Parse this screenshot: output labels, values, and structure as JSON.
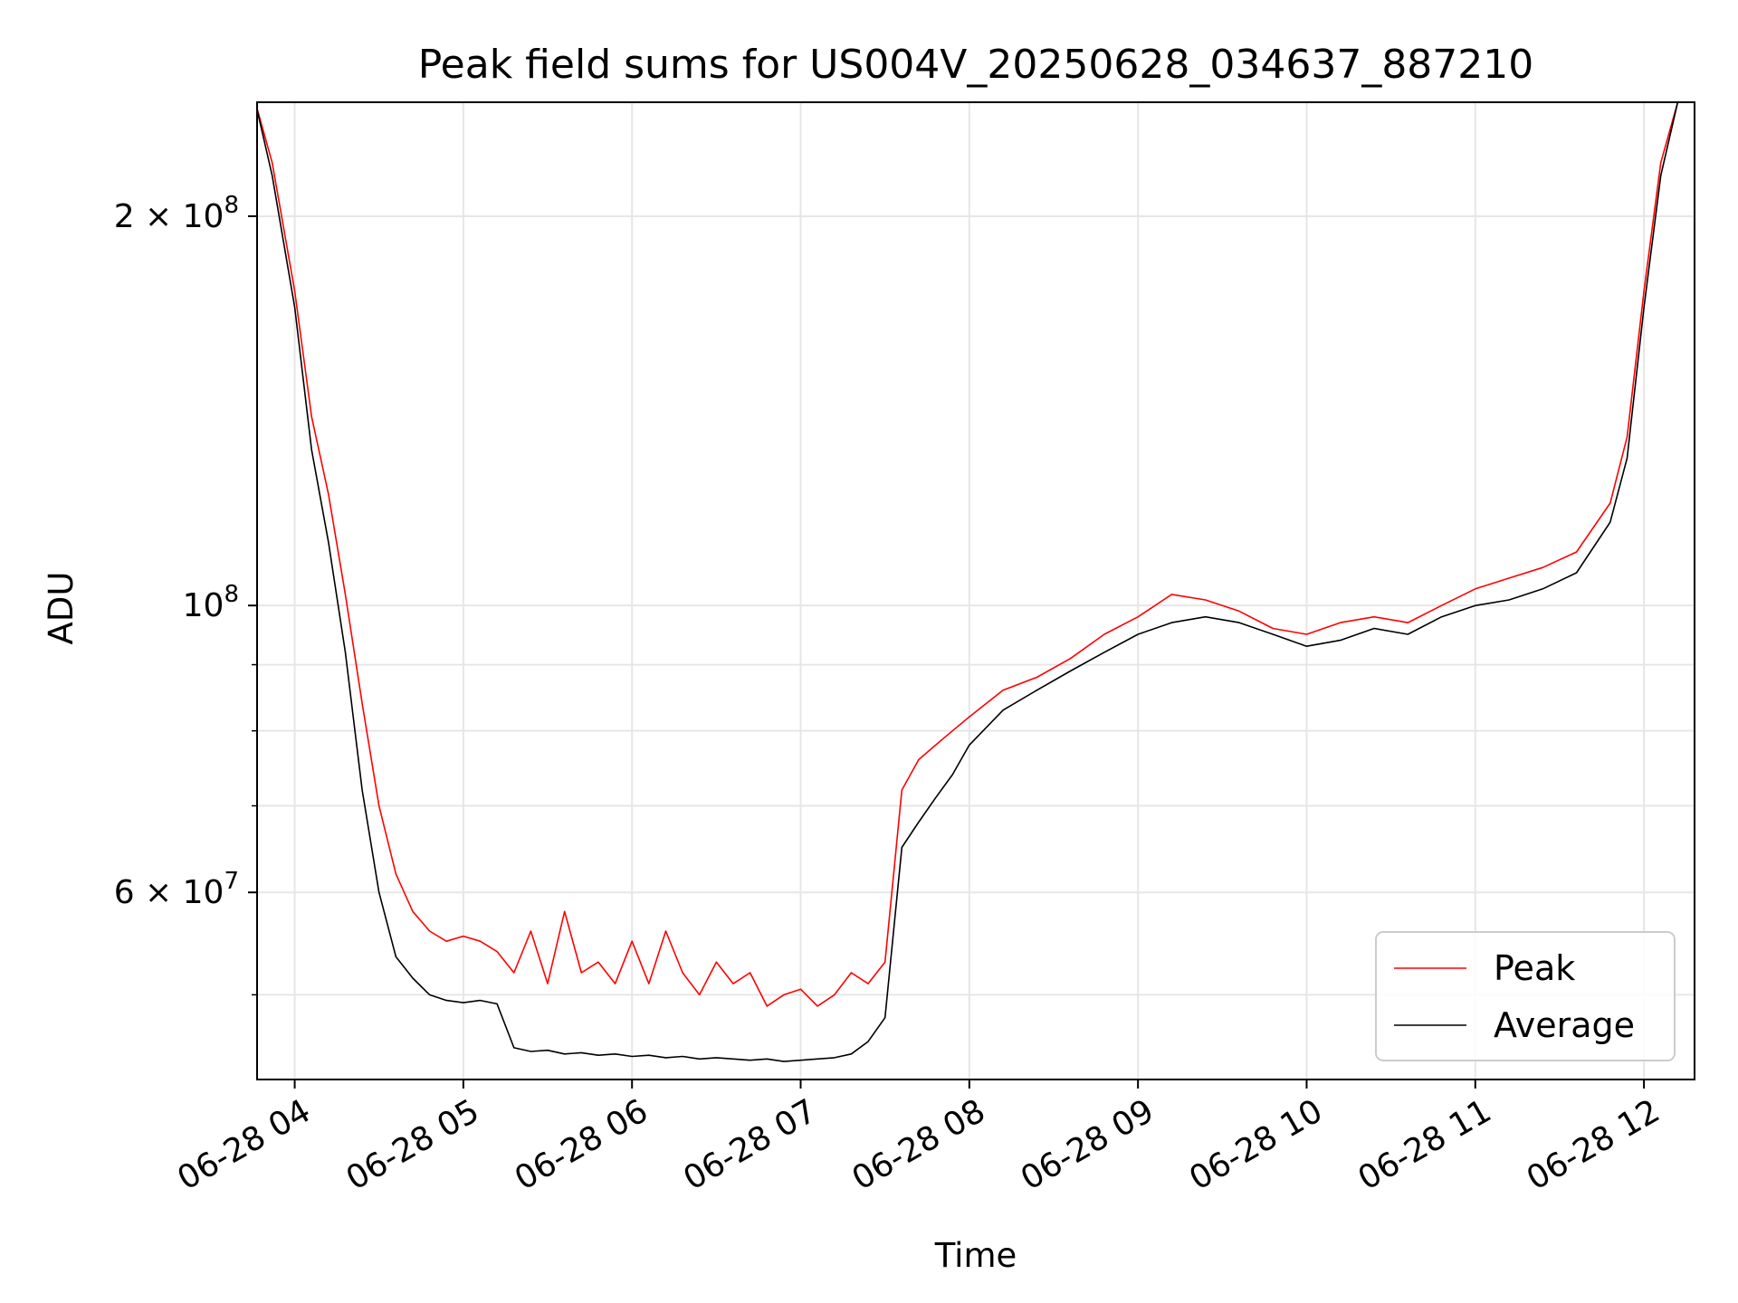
{
  "chart_data": {
    "type": "line",
    "title": "Peak field sums for US004V_20250628_034637_887210",
    "xlabel": "Time",
    "ylabel": "ADU",
    "y_scale": "log",
    "ylim": [
      43000000,
      245000000
    ],
    "xlim": [
      "2025-06-28 03:46:37",
      "2025-06-28 12:18:00"
    ],
    "grid": true,
    "legend_position": "lower right",
    "x_ticks": [
      "2025-06-28 04:00",
      "2025-06-28 05:00",
      "2025-06-28 06:00",
      "2025-06-28 07:00",
      "2025-06-28 08:00",
      "2025-06-28 09:00",
      "2025-06-28 10:00",
      "2025-06-28 11:00",
      "2025-06-28 12:00"
    ],
    "x_tick_labels": [
      "06-28 04",
      "06-28 05",
      "06-28 06",
      "06-28 07",
      "06-28 08",
      "06-28 09",
      "06-28 10",
      "06-28 11",
      "06-28 12"
    ],
    "y_ticks": [
      {
        "value": 200000000,
        "mantissa": "2",
        "exp": "8"
      },
      {
        "value": 100000000,
        "mantissa": "",
        "exp": "8"
      },
      {
        "value": 60000000,
        "mantissa": "6",
        "exp": "7"
      }
    ],
    "y_minor_ticks": [
      50000000,
      70000000,
      80000000,
      90000000
    ],
    "series": [
      {
        "name": "Peak",
        "color": "#ff0000",
        "x": [
          "2025-06-28 03:46",
          "2025-06-28 03:52",
          "2025-06-28 04:00",
          "2025-06-28 04:06",
          "2025-06-28 04:12",
          "2025-06-28 04:18",
          "2025-06-28 04:24",
          "2025-06-28 04:30",
          "2025-06-28 04:36",
          "2025-06-28 04:42",
          "2025-06-28 04:48",
          "2025-06-28 04:54",
          "2025-06-28 05:00",
          "2025-06-28 05:06",
          "2025-06-28 05:12",
          "2025-06-28 05:18",
          "2025-06-28 05:24",
          "2025-06-28 05:30",
          "2025-06-28 05:36",
          "2025-06-28 05:42",
          "2025-06-28 05:48",
          "2025-06-28 05:54",
          "2025-06-28 06:00",
          "2025-06-28 06:06",
          "2025-06-28 06:12",
          "2025-06-28 06:18",
          "2025-06-28 06:24",
          "2025-06-28 06:30",
          "2025-06-28 06:36",
          "2025-06-28 06:42",
          "2025-06-28 06:48",
          "2025-06-28 06:54",
          "2025-06-28 07:00",
          "2025-06-28 07:06",
          "2025-06-28 07:12",
          "2025-06-28 07:18",
          "2025-06-28 07:24",
          "2025-06-28 07:30",
          "2025-06-28 07:36",
          "2025-06-28 07:42",
          "2025-06-28 07:48",
          "2025-06-28 07:54",
          "2025-06-28 08:00",
          "2025-06-28 08:12",
          "2025-06-28 08:24",
          "2025-06-28 08:36",
          "2025-06-28 08:48",
          "2025-06-28 09:00",
          "2025-06-28 09:12",
          "2025-06-28 09:24",
          "2025-06-28 09:36",
          "2025-06-28 09:48",
          "2025-06-28 10:00",
          "2025-06-28 10:12",
          "2025-06-28 10:24",
          "2025-06-28 10:36",
          "2025-06-28 10:48",
          "2025-06-28 11:00",
          "2025-06-28 11:12",
          "2025-06-28 11:24",
          "2025-06-28 11:36",
          "2025-06-28 11:48",
          "2025-06-28 11:54",
          "2025-06-28 12:00",
          "2025-06-28 12:06",
          "2025-06-28 12:12",
          "2025-06-28 12:16"
        ],
        "values": [
          245000000,
          220000000,
          175000000,
          140000000,
          122000000,
          102000000,
          84000000,
          70000000,
          62000000,
          58000000,
          56000000,
          55000000,
          55500000,
          55000000,
          54000000,
          52000000,
          56000000,
          51000000,
          58000000,
          52000000,
          53000000,
          51000000,
          55000000,
          51000000,
          56000000,
          52000000,
          50000000,
          53000000,
          51000000,
          52000000,
          49000000,
          50000000,
          50500000,
          49000000,
          50000000,
          52000000,
          51000000,
          53000000,
          72000000,
          76000000,
          78000000,
          80000000,
          82000000,
          86000000,
          88000000,
          91000000,
          95000000,
          98000000,
          102000000,
          101000000,
          99000000,
          96000000,
          95000000,
          97000000,
          98000000,
          97000000,
          100000000,
          103000000,
          105000000,
          107000000,
          110000000,
          120000000,
          135000000,
          175000000,
          220000000,
          245000000,
          245000000
        ]
      },
      {
        "name": "Average",
        "color": "#000000",
        "x": [
          "2025-06-28 03:46",
          "2025-06-28 03:52",
          "2025-06-28 04:00",
          "2025-06-28 04:06",
          "2025-06-28 04:12",
          "2025-06-28 04:18",
          "2025-06-28 04:24",
          "2025-06-28 04:30",
          "2025-06-28 04:36",
          "2025-06-28 04:42",
          "2025-06-28 04:48",
          "2025-06-28 04:54",
          "2025-06-28 05:00",
          "2025-06-28 05:06",
          "2025-06-28 05:12",
          "2025-06-28 05:18",
          "2025-06-28 05:24",
          "2025-06-28 05:30",
          "2025-06-28 05:36",
          "2025-06-28 05:42",
          "2025-06-28 05:48",
          "2025-06-28 05:54",
          "2025-06-28 06:00",
          "2025-06-28 06:06",
          "2025-06-28 06:12",
          "2025-06-28 06:18",
          "2025-06-28 06:24",
          "2025-06-28 06:30",
          "2025-06-28 06:36",
          "2025-06-28 06:42",
          "2025-06-28 06:48",
          "2025-06-28 06:54",
          "2025-06-28 07:00",
          "2025-06-28 07:06",
          "2025-06-28 07:12",
          "2025-06-28 07:18",
          "2025-06-28 07:24",
          "2025-06-28 07:30",
          "2025-06-28 07:36",
          "2025-06-28 07:42",
          "2025-06-28 07:48",
          "2025-06-28 07:54",
          "2025-06-28 08:00",
          "2025-06-28 08:12",
          "2025-06-28 08:24",
          "2025-06-28 08:36",
          "2025-06-28 08:48",
          "2025-06-28 09:00",
          "2025-06-28 09:12",
          "2025-06-28 09:24",
          "2025-06-28 09:36",
          "2025-06-28 09:48",
          "2025-06-28 10:00",
          "2025-06-28 10:12",
          "2025-06-28 10:24",
          "2025-06-28 10:36",
          "2025-06-28 10:48",
          "2025-06-28 11:00",
          "2025-06-28 11:12",
          "2025-06-28 11:24",
          "2025-06-28 11:36",
          "2025-06-28 11:48",
          "2025-06-28 11:54",
          "2025-06-28 12:00",
          "2025-06-28 12:06",
          "2025-06-28 12:12",
          "2025-06-28 12:16"
        ],
        "values": [
          245000000,
          215000000,
          170000000,
          132000000,
          112000000,
          92000000,
          72000000,
          60000000,
          53500000,
          51500000,
          50000000,
          49500000,
          49300000,
          49500000,
          49200000,
          45500000,
          45200000,
          45300000,
          45000000,
          45100000,
          44900000,
          45000000,
          44800000,
          44900000,
          44700000,
          44800000,
          44600000,
          44700000,
          44600000,
          44500000,
          44600000,
          44400000,
          44500000,
          44600000,
          44700000,
          45000000,
          46000000,
          48000000,
          65000000,
          68000000,
          71000000,
          74000000,
          78000000,
          83000000,
          86000000,
          89000000,
          92000000,
          95000000,
          97000000,
          98000000,
          97000000,
          95000000,
          93000000,
          94000000,
          96000000,
          95000000,
          98000000,
          100000000,
          101000000,
          103000000,
          106000000,
          116000000,
          130000000,
          170000000,
          215000000,
          245000000,
          245000000
        ]
      }
    ],
    "legend": [
      {
        "label": "Peak",
        "color": "#ff0000"
      },
      {
        "label": "Average",
        "color": "#000000"
      }
    ]
  }
}
